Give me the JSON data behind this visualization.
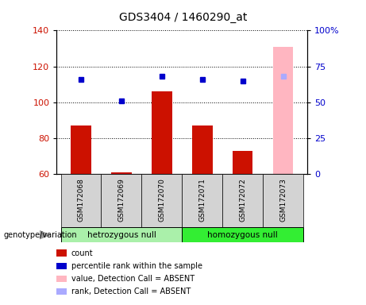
{
  "title": "GDS3404 / 1460290_at",
  "samples": [
    "GSM172068",
    "GSM172069",
    "GSM172070",
    "GSM172071",
    "GSM172072",
    "GSM172073"
  ],
  "count_values": [
    87,
    61,
    106,
    87,
    73,
    null
  ],
  "count_absent": [
    null,
    null,
    null,
    null,
    null,
    131
  ],
  "rank_values": [
    66,
    51,
    68,
    66,
    65,
    null
  ],
  "rank_absent": [
    null,
    null,
    null,
    null,
    null,
    68
  ],
  "ylim_left": [
    60,
    140
  ],
  "ylim_right": [
    0,
    100
  ],
  "yticks_left": [
    60,
    80,
    100,
    120,
    140
  ],
  "yticks_right": [
    0,
    25,
    50,
    75,
    100
  ],
  "ytick_labels_right": [
    "0",
    "25",
    "50",
    "75",
    "100%"
  ],
  "groups": [
    {
      "label": "hetrozygous null",
      "start": 0,
      "end": 2,
      "color": "#aaf0aa"
    },
    {
      "label": "homozygous null",
      "start": 3,
      "end": 5,
      "color": "#33ee33"
    }
  ],
  "bar_color_present": "#cc1100",
  "bar_color_absent": "#ffb6c1",
  "rank_color_present": "#0000cc",
  "rank_color_absent": "#aaaaff",
  "bar_width": 0.5,
  "legend_items": [
    {
      "color": "#cc1100",
      "label": "count"
    },
    {
      "color": "#0000cc",
      "label": "percentile rank within the sample"
    },
    {
      "color": "#ffb6c1",
      "label": "value, Detection Call = ABSENT"
    },
    {
      "color": "#aaaaff",
      "label": "rank, Detection Call = ABSENT"
    }
  ],
  "genotype_label": "genotype/variation"
}
